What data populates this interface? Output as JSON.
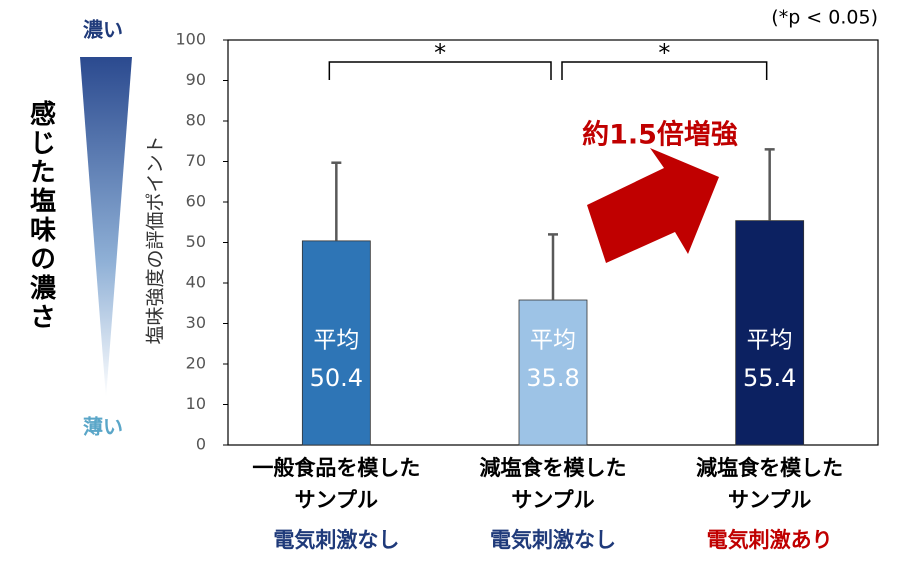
{
  "chart_data": {
    "type": "bar",
    "note": "(*p < 0.05)",
    "ylabel": "塩味強度の評価ポイント",
    "scale_title": "感じた塩味の濃さ",
    "scale_top": "濃い",
    "scale_bottom": "薄い",
    "annotation": "約1.5倍増強",
    "bar_label": "平均",
    "categories": [
      "一般食品を模した\nサンプル",
      "減塩食を模した\nサンプル",
      "減塩食を模した\nサンプル"
    ],
    "category_notes": [
      "電気刺激なし",
      "電気刺激なし",
      "電気刺激あり"
    ],
    "category_note_colors": [
      "#1f3a7a",
      "#1f3a7a",
      "#c00000"
    ],
    "values": [
      50.4,
      35.8,
      55.4
    ],
    "errors": [
      19.3,
      16.2,
      17.6
    ],
    "colors": [
      "#2e75b6",
      "#9dc3e6",
      "#0c2161"
    ],
    "error_color": "#595959",
    "significance_labels": [
      "*",
      "*"
    ],
    "ylim": [
      0,
      100
    ],
    "yticks": [
      0,
      10,
      20,
      30,
      40,
      50,
      60,
      70,
      80,
      90,
      100
    ],
    "grid": false
  }
}
